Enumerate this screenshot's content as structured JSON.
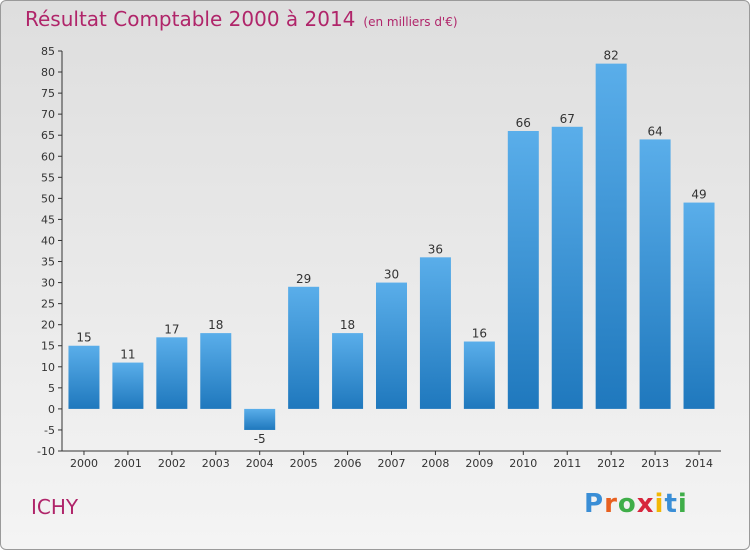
{
  "title": "Résultat Comptable 2000 à 2014",
  "unit": "(en milliers d'€)",
  "commune": "ICHY",
  "logo": {
    "letters": [
      "P",
      "r",
      "o",
      "x",
      "i",
      "t",
      "i"
    ],
    "colors": [
      "#3a8ed6",
      "#e8601f",
      "#3fae49",
      "#d7263d",
      "#f2b705",
      "#3a8ed6",
      "#3fae49"
    ]
  },
  "colors": {
    "bar": "#2e8fd3",
    "title": "#b0256a"
  },
  "chart_data": {
    "type": "bar",
    "categories": [
      "2000",
      "2001",
      "2002",
      "2003",
      "2004",
      "2005",
      "2006",
      "2007",
      "2008",
      "2009",
      "2010",
      "2011",
      "2012",
      "2013",
      "2014"
    ],
    "values": [
      15,
      11,
      17,
      18,
      -5,
      29,
      18,
      30,
      36,
      16,
      66,
      67,
      82,
      64,
      49
    ],
    "ylim": [
      -10,
      85
    ],
    "yticks": [
      -10,
      -5,
      0,
      5,
      10,
      15,
      20,
      25,
      30,
      35,
      40,
      45,
      50,
      55,
      60,
      65,
      70,
      75,
      80,
      85
    ],
    "grid": false
  }
}
